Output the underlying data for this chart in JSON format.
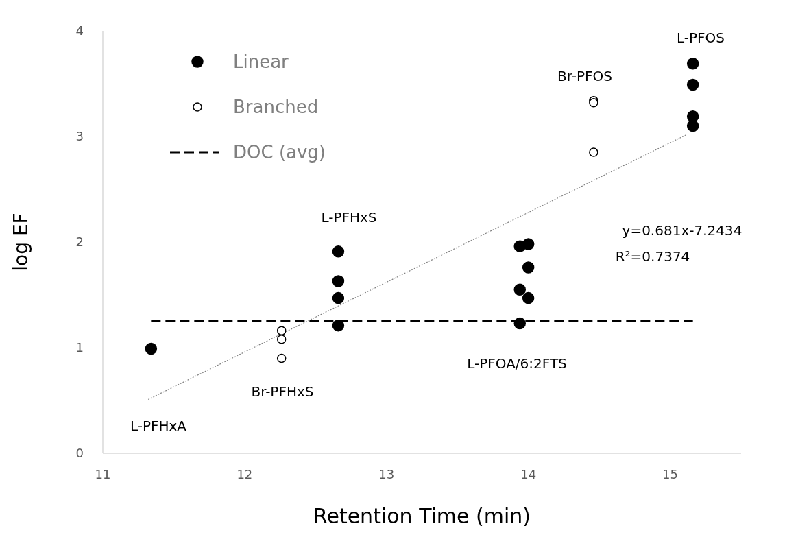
{
  "chart_data": {
    "type": "scatter",
    "xlabel": "Retention Time (min)",
    "ylabel": "log EF",
    "xlim": [
      11,
      15.5
    ],
    "xticks": [
      11,
      12,
      13,
      14,
      15
    ],
    "ylim": [
      0,
      4
    ],
    "yticks": [
      0,
      1,
      2,
      3,
      4
    ],
    "grid": false,
    "legend": "top left",
    "marker": "circle",
    "series": [
      {
        "name": "Linear",
        "color": "#000000",
        "x": [
          11.34,
          12.66,
          12.66,
          12.66,
          12.66,
          13.94,
          13.94,
          13.94,
          14.0,
          14.0,
          14.0,
          15.16,
          15.16,
          15.16,
          15.16
        ],
        "values": [
          0.99,
          1.91,
          1.63,
          1.47,
          1.21,
          1.96,
          1.55,
          1.23,
          1.98,
          1.76,
          1.47,
          3.69,
          3.49,
          3.19,
          3.1
        ]
      },
      {
        "name": "Branched",
        "color": "#ffffff",
        "x": [
          12.26,
          12.26,
          12.26,
          14.46,
          14.46,
          14.46
        ],
        "values": [
          1.16,
          1.08,
          0.9,
          3.34,
          3.32,
          2.85
        ]
      },
      {
        "type": "line",
        "name": "DOC (avg)",
        "color": "#000000",
        "line_style": "dashed",
        "marker": "none",
        "x": [
          11.34,
          15.16
        ],
        "values": [
          1.25,
          1.25
        ]
      },
      {
        "type": "line",
        "color": "#808080",
        "line_style": "dotted",
        "marker": "none",
        "x": [
          11.32,
          15.12
        ],
        "values": [
          0.51,
          3.02
        ]
      }
    ],
    "annotations": [
      "L-PFHxA",
      "Br-PFHxS",
      "L-PFHxS",
      "L-PFOA/6:2FTS",
      "Br-PFOS",
      "L-PFOS",
      "y=0.681x-7.2434",
      "R²=0.7374"
    ]
  }
}
